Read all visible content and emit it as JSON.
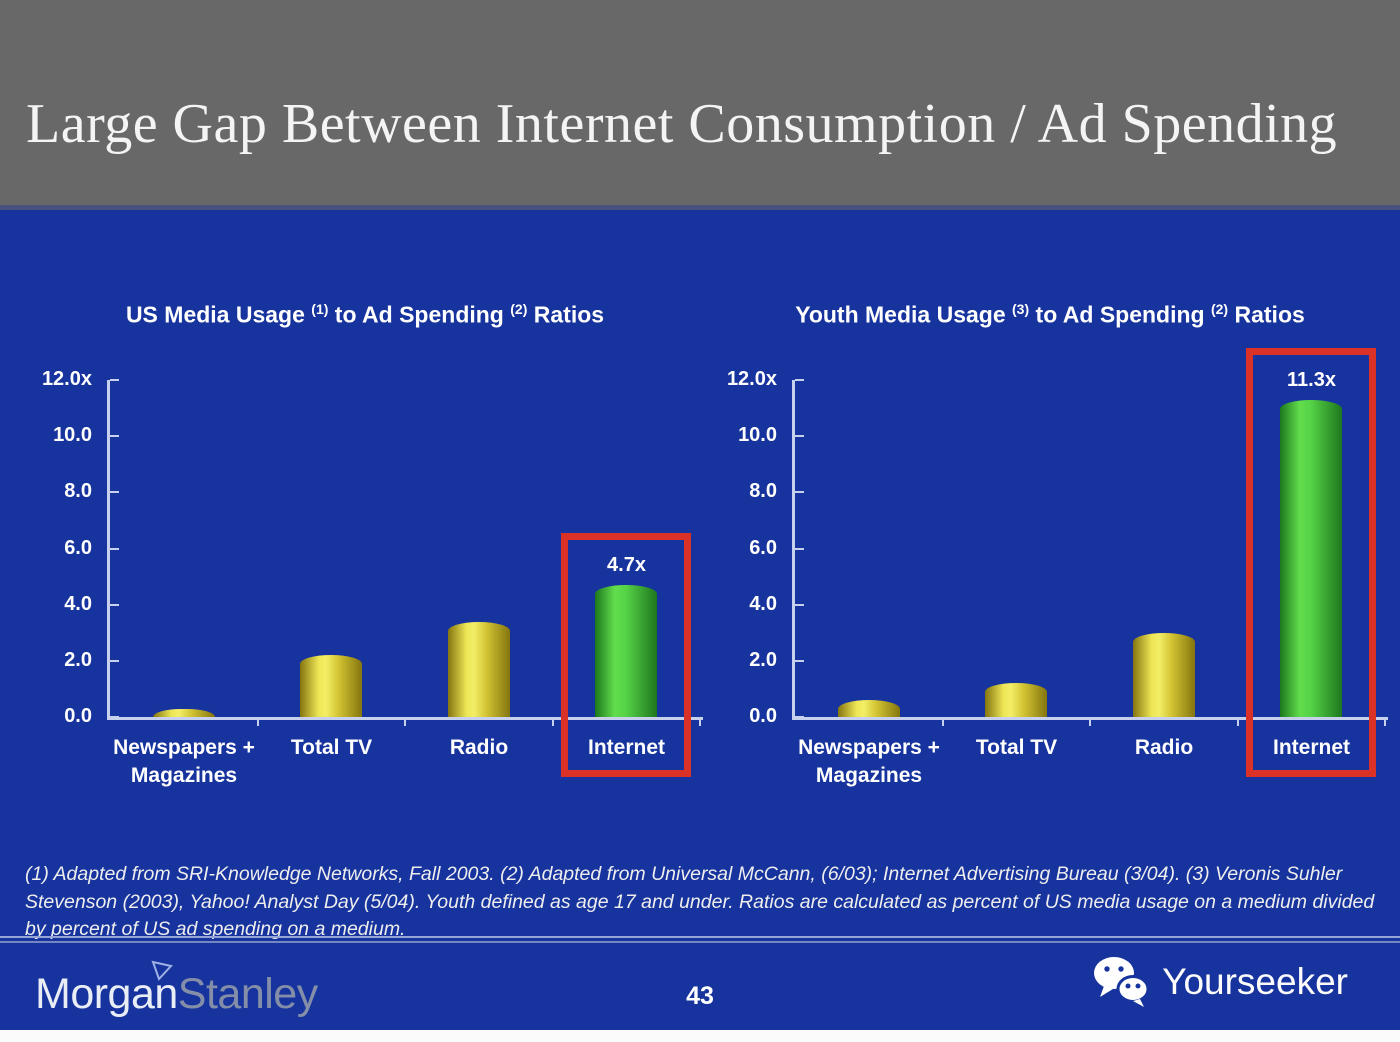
{
  "slide": {
    "title": "Large Gap Between Internet Consumption / Ad Spending",
    "page_number": "43",
    "footnote": "(1) Adapted from SRI-Knowledge Networks, Fall 2003.  (2) Adapted from Universal McCann, (6/03); Internet Advertising Bureau (3/04). (3) Veronis Suhler Stevenson (2003), Yahoo! Analyst Day (5/04).  Youth defined as age 17 and under.  Ratios are calculated as percent of US media usage on a medium divided by percent of US ad spending on a medium."
  },
  "branding": {
    "logo_part1": "Morgan",
    "logo_part2": "Stanley",
    "watermark_text": "Yourseeker",
    "wechat_icon": "wechat-logo",
    "logo_triangle_icon": "triangle-flag"
  },
  "colors": {
    "header_bg": "#686868",
    "body_bg": "#17339d",
    "bar_yellow": "#e8dd45",
    "bar_green": "#55d246",
    "highlight_red": "#da3226",
    "axis": "#c7d1ed",
    "title_text": "#f4f4f4",
    "bottom_strip": "#fbfbfb"
  },
  "chart_data": [
    {
      "type": "bar",
      "title": "US Media Usage (1) to Ad Spending (2) Ratios",
      "title_parts": {
        "t1": "US Media Usage ",
        "s1": "(1)",
        "t2": " to Ad Spending ",
        "s2": "(2)",
        "t3": " Ratios"
      },
      "categories": [
        "Newspapers + Magazines",
        "Total TV",
        "Radio",
        "Internet"
      ],
      "values": [
        0.3,
        2.2,
        3.4,
        4.7
      ],
      "bar_colors": [
        "yellow",
        "yellow",
        "yellow",
        "green"
      ],
      "highlight_index": 3,
      "highlight_label": "4.7x",
      "ylim": [
        0,
        12
      ],
      "yticks": [
        "12.0x",
        "10.0",
        "8.0",
        "6.0",
        "4.0",
        "2.0",
        "0.0"
      ],
      "xlabel": "",
      "ylabel": "",
      "grid": false,
      "legend": false
    },
    {
      "type": "bar",
      "title": "Youth Media Usage (3) to Ad Spending (2) Ratios",
      "title_parts": {
        "t1": "Youth Media Usage ",
        "s1": "(3)",
        "t2": " to Ad Spending ",
        "s2": "(2)",
        "t3": " Ratios"
      },
      "categories": [
        "Newspapers + Magazines",
        "Total TV",
        "Radio",
        "Internet"
      ],
      "values": [
        0.6,
        1.2,
        3.0,
        11.3
      ],
      "bar_colors": [
        "yellow",
        "yellow",
        "yellow",
        "green"
      ],
      "highlight_index": 3,
      "highlight_label": "11.3x",
      "ylim": [
        0,
        12
      ],
      "yticks": [
        "12.0x",
        "10.0",
        "8.0",
        "6.0",
        "4.0",
        "2.0",
        "0.0"
      ],
      "xlabel": "",
      "ylabel": "",
      "grid": false,
      "legend": false
    }
  ]
}
